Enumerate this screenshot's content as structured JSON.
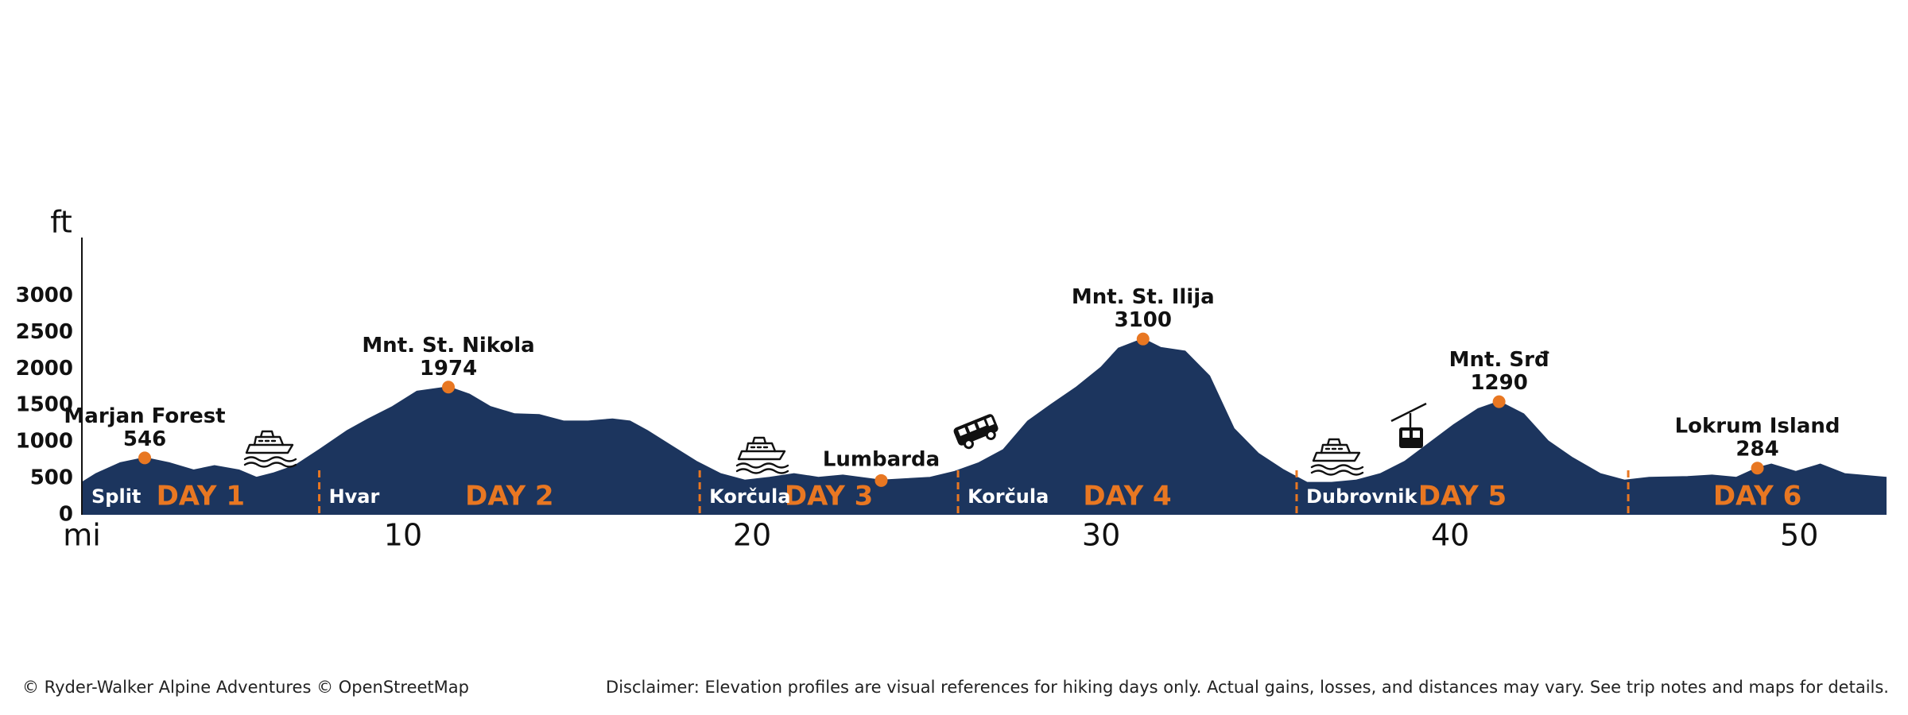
{
  "chart_data": {
    "type": "area",
    "y_unit": "ft",
    "x_unit": "mi",
    "xlim": [
      0.8,
      52.5
    ],
    "ylim": [
      0,
      3800
    ],
    "yticks": [
      0,
      500,
      1000,
      1500,
      2000,
      2500,
      3000
    ],
    "xticks": [
      10,
      20,
      30,
      40,
      50
    ],
    "color": "#1c355e",
    "accent_color": "#e87722",
    "x": [
      0.8,
      1.2,
      1.9,
      2.6,
      3.3,
      4.0,
      4.6,
      5.3,
      5.8,
      6.3,
      6.9,
      7.6,
      8.4,
      9.0,
      9.7,
      10.4,
      11.3,
      11.9,
      12.5,
      13.2,
      13.9,
      14.6,
      15.3,
      16.0,
      16.5,
      17.0,
      17.7,
      18.4,
      19.1,
      19.8,
      20.5,
      21.2,
      21.9,
      22.6,
      23.7,
      24.4,
      25.1,
      25.8,
      26.5,
      27.2,
      27.9,
      28.6,
      29.3,
      30.0,
      30.5,
      31.2,
      31.7,
      32.4,
      33.1,
      33.8,
      34.5,
      35.2,
      35.9,
      36.6,
      37.3,
      38.0,
      38.7,
      39.4,
      40.1,
      40.8,
      41.4,
      42.1,
      42.8,
      43.5,
      44.3,
      45.0,
      45.7,
      46.8,
      47.5,
      48.2,
      48.8,
      49.2,
      49.9,
      50.6,
      51.3,
      52.5
    ],
    "y": [
      440,
      560,
      710,
      780,
      710,
      610,
      670,
      610,
      510,
      570,
      670,
      890,
      1150,
      1310,
      1480,
      1690,
      1750,
      1650,
      1480,
      1380,
      1370,
      1280,
      1280,
      1310,
      1280,
      1150,
      940,
      730,
      560,
      470,
      510,
      560,
      510,
      540,
      470,
      490,
      510,
      590,
      710,
      890,
      1280,
      1520,
      1750,
      2020,
      2280,
      2410,
      2290,
      2240,
      1900,
      1180,
      840,
      620,
      440,
      440,
      470,
      560,
      730,
      980,
      1230,
      1450,
      1550,
      1380,
      1010,
      780,
      560,
      470,
      510,
      520,
      540,
      510,
      640,
      690,
      590,
      690,
      560,
      510
    ],
    "days": [
      {
        "label": "DAY 1",
        "start": 0.8,
        "town": "Split"
      },
      {
        "label": "DAY 2",
        "start": 7.6,
        "town": "Hvar"
      },
      {
        "label": "DAY 3",
        "start": 18.5,
        "town": "Korčula"
      },
      {
        "label": "DAY 4",
        "start": 25.9,
        "town": "Korčula"
      },
      {
        "label": "DAY 5",
        "start": 35.6,
        "town": "Dubrovnik"
      },
      {
        "label": "DAY 6",
        "start": 45.1
      }
    ],
    "peaks": [
      {
        "name": "Marjan Forest",
        "elevation": 546,
        "x": 2.6
      },
      {
        "name": "Mnt. St. Nikola",
        "elevation": 1974,
        "x": 11.3
      },
      {
        "name": "Lumbarda",
        "x": 23.7
      },
      {
        "name": "Mnt. St. Ilija",
        "elevation": 3100,
        "x": 31.2
      },
      {
        "name": "Mnt. Srđ",
        "elevation": 1290,
        "x": 41.4
      },
      {
        "name": "Lokrum Island",
        "elevation": 284,
        "x": 48.8
      }
    ]
  },
  "footer": {
    "credit": "© Ryder-Walker Alpine Adventures © OpenStreetMap",
    "disclaimer": "Disclaimer: Elevation profiles are visual references for hiking days only. Actual gains, losses, and distances may vary. See trip notes and maps for details."
  }
}
